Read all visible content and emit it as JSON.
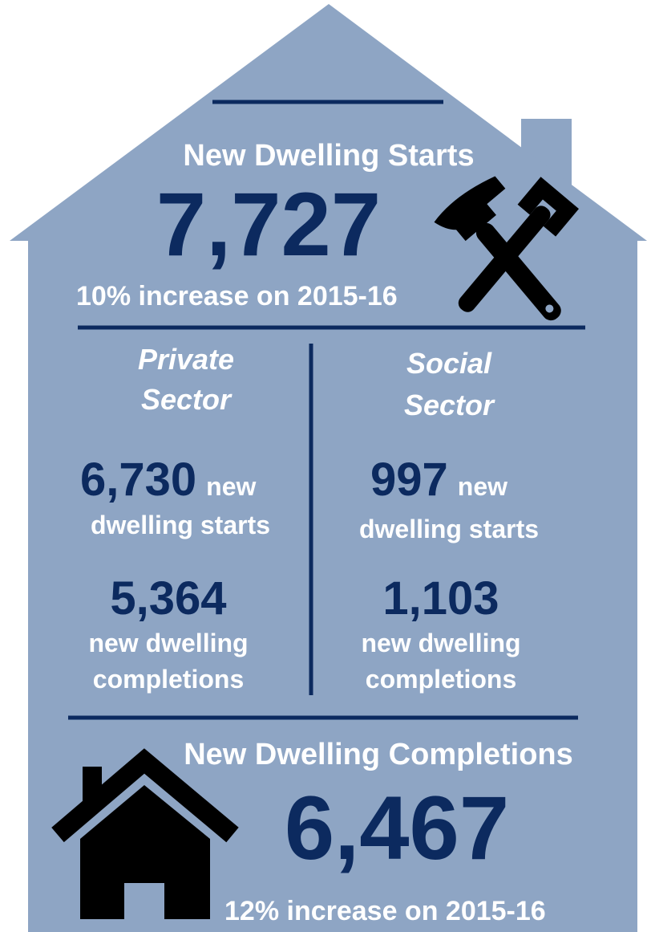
{
  "header": {
    "title": "New Dwelling Starts",
    "value": "7,727",
    "note": "10% increase on 2015-16"
  },
  "sectors": [
    {
      "title_lines": [
        "Private",
        "Sector"
      ],
      "starts_value": "6,730",
      "starts_word": "new",
      "starts_label": "dwelling starts",
      "completions_value": "5,364",
      "completions_lines": [
        "new dwelling",
        "completions"
      ]
    },
    {
      "title_lines": [
        "Social",
        "Sector"
      ],
      "starts_value": "997",
      "starts_word": "new",
      "starts_label": "dwelling starts",
      "completions_value": "1,103",
      "completions_lines": [
        "new dwelling",
        "completions"
      ]
    }
  ],
  "footer": {
    "title": "New Dwelling Completions",
    "value": "6,467",
    "note": "12% increase on 2015-16"
  }
}
